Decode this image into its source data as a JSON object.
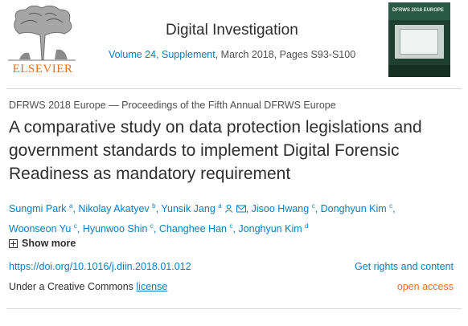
{
  "header": {
    "logo_text": "ELSEVIER",
    "journal_title": "Digital Investigation",
    "volume_link": "Volume 24, Supplement",
    "issue_date_pages": ", March 2018, Pages S93-S100",
    "cover_title": "DFRWS 2018 EUROPE"
  },
  "article": {
    "proceedings": "DFRWS 2018 Europe — Proceedings of the Fifth Annual DFRWS Europe",
    "title": "A comparative study on data protection legislations and government standards to implement Digital Forensic Readiness as mandatory requirement",
    "authors": [
      {
        "name": "Sungmi Park",
        "aff": "a"
      },
      {
        "name": "Nikolay Akatyev",
        "aff": "b"
      },
      {
        "name": "Yunsik Jang",
        "aff": "a"
      },
      {
        "name": "Jisoo Hwang",
        "aff": "c"
      },
      {
        "name": "Donghyun Kim",
        "aff": "c"
      },
      {
        "name": "Woonseon Yu",
        "aff": "c"
      },
      {
        "name": "Hyunwoo Shin",
        "aff": "c"
      },
      {
        "name": "Changhee Han",
        "aff": "c"
      },
      {
        "name": "Jonghyun Kim",
        "aff": "d"
      }
    ],
    "show_more": "Show more",
    "doi": "https://doi.org/10.1016/j.diin.2018.01.012",
    "rights": "Get rights and content",
    "license_prefix": "Under a Creative Commons ",
    "license_link": "license",
    "open_access": "open access"
  },
  "colors": {
    "link": "#0c7dbb",
    "brand": "#e9711c",
    "text": "#2e2e2e"
  },
  "icons": {
    "author_contact": "person-icon",
    "author_email": "mail-icon",
    "show_more": "plus-box-icon"
  }
}
